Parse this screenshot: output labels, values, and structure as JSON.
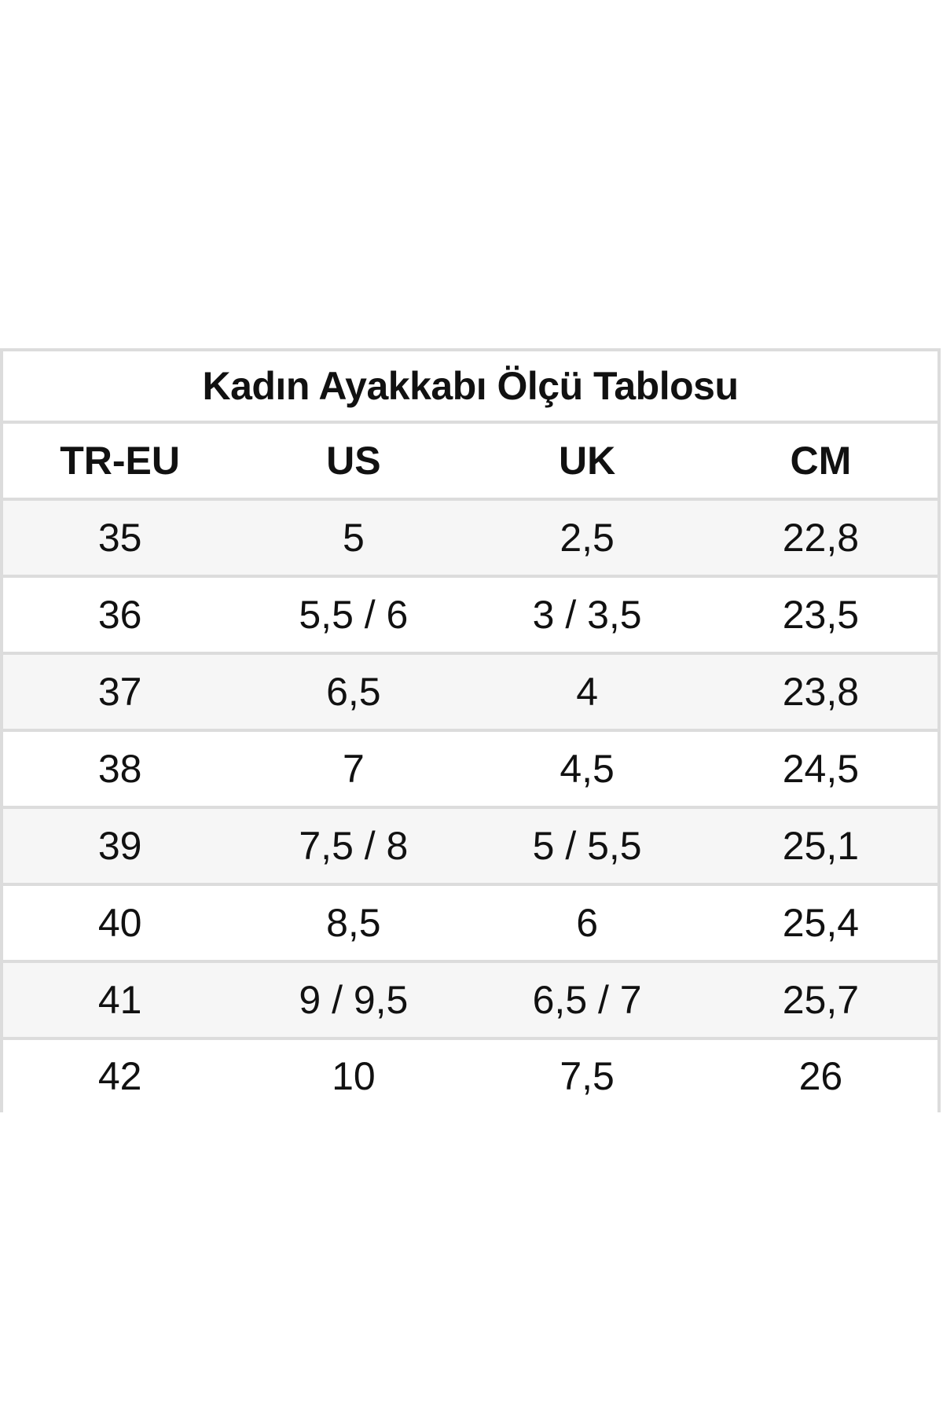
{
  "title": "Kadın Ayakkabı Ölçü Tablosu",
  "headers": [
    "TR-EU",
    "US",
    "UK",
    "CM"
  ],
  "rows": [
    [
      "35",
      "5",
      "2,5",
      "22,8"
    ],
    [
      "36",
      "5,5 / 6",
      "3 / 3,5",
      "23,5"
    ],
    [
      "37",
      "6,5",
      "4",
      "23,8"
    ],
    [
      "38",
      "7",
      "4,5",
      "24,5"
    ],
    [
      "39",
      "7,5 / 8",
      "5 / 5,5",
      "25,1"
    ],
    [
      "40",
      "8,5",
      "6",
      "25,4"
    ],
    [
      "41",
      "9 / 9,5",
      "6,5 / 7",
      "25,7"
    ],
    [
      "42",
      "10",
      "7,5",
      "26"
    ]
  ]
}
